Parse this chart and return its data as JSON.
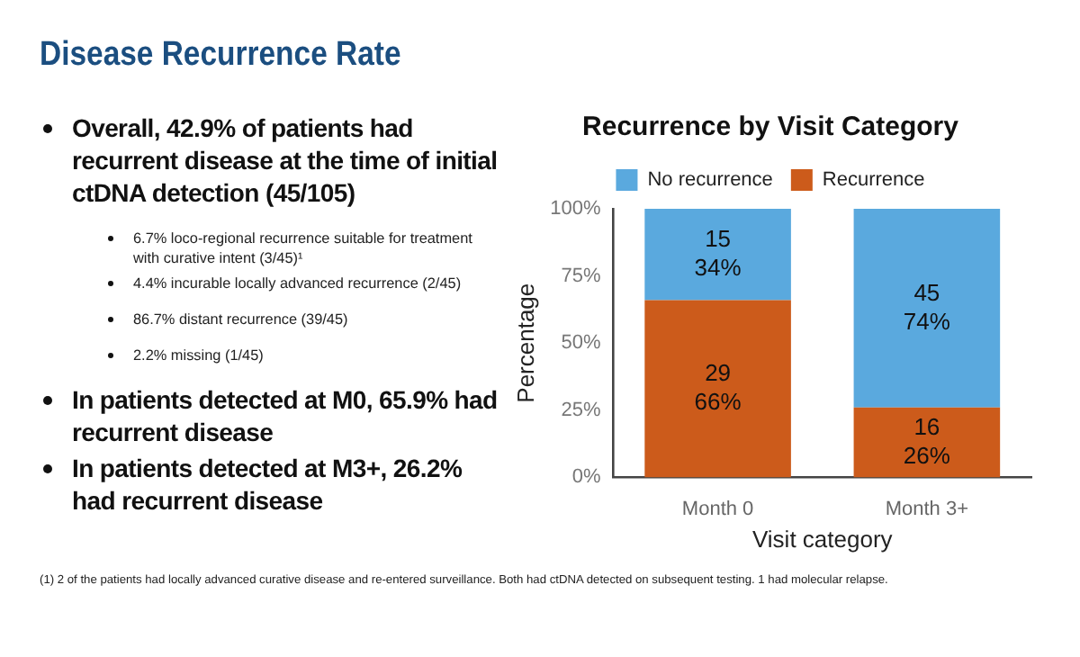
{
  "chart_data": {
    "type": "bar",
    "title": "Recurrence by Visit Category",
    "xlabel": "Visit category",
    "ylabel": "Percentage",
    "categories": [
      "Month 0",
      "Month 3+"
    ],
    "series": [
      {
        "name": "Recurrence",
        "color": "#cc5b1b",
        "values": [
          66,
          26
        ],
        "value_labels": [
          "29\n66%",
          "16\n26%"
        ]
      },
      {
        "name": "No recurrence",
        "color": "#5aa9de",
        "values": [
          34,
          74
        ],
        "value_labels": [
          "15\n34%",
          "45\n74%"
        ]
      }
    ],
    "stacked": true,
    "ylim": [
      0,
      100
    ],
    "yticks": [
      {
        "value": 0,
        "label": "0%"
      },
      {
        "value": 25,
        "label": "25%"
      },
      {
        "value": 50,
        "label": "50%"
      },
      {
        "value": 75,
        "label": "75%"
      },
      {
        "value": 100,
        "label": "100%"
      }
    ],
    "grid": false,
    "legend": "top",
    "annotations": [
      "Disease Recurrence Rate",
      "Overall, 42.9% of patients had recurrent disease at the time of initial ctDNA detection (45/105)",
      "6.7% loco-regional recurrence suitable for treatment with curative intent  (3/45)¹",
      "4.4% incurable locally advanced recurrence (2/45)",
      "86.7% distant recurrence (39/45)",
      "2.2% missing (1/45)",
      "In patients detected at M0, 65.9% had recurrent disease",
      "In patients detected at M3+, 26.2% had recurrent disease",
      "(1) 2 of the patients had locally advanced curative disease and re-entered surveillance. Both had ctDNA detected on subsequent testing. 1 had molecular relapse."
    ]
  }
}
